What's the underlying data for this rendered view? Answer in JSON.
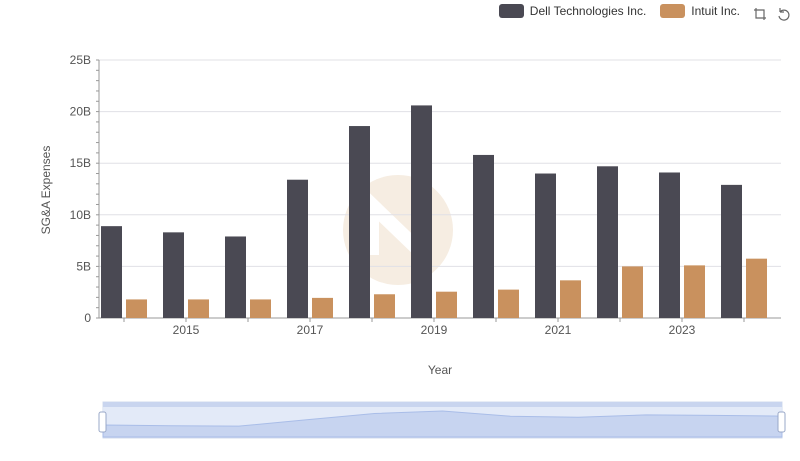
{
  "legend": {
    "items": [
      {
        "label": "Dell Technologies Inc.",
        "color": "#4a4953"
      },
      {
        "label": "Intuit Inc.",
        "color": "#c9915e"
      }
    ]
  },
  "toolbox": {
    "icons": [
      "zoom-icon",
      "restore-icon"
    ]
  },
  "chart_data": {
    "type": "bar",
    "xlabel": "Year",
    "ylabel": "SG&A Expenses",
    "categories": [
      "2014",
      "2015",
      "2016",
      "2017",
      "2018",
      "2019",
      "2020",
      "2021",
      "2022",
      "2023",
      "2024"
    ],
    "x_tick_labels": [
      "2015",
      "2017",
      "2019",
      "2021",
      "2023"
    ],
    "y_ticks": [
      "0",
      "5B",
      "10B",
      "15B",
      "20B",
      "25B"
    ],
    "ylim": [
      0,
      25000000000
    ],
    "series": [
      {
        "name": "Dell Technologies Inc.",
        "color": "#4a4953",
        "values": [
          8900000000,
          8300000000,
          7900000000,
          13400000000,
          18600000000,
          20600000000,
          15800000000,
          14000000000,
          14700000000,
          14100000000,
          12900000000
        ]
      },
      {
        "name": "Intuit Inc.",
        "color": "#c9915e",
        "values": [
          1800000000,
          1800000000,
          1800000000,
          1950000000,
          2300000000,
          2550000000,
          2750000000,
          3650000000,
          5000000000,
          5100000000,
          5750000000
        ]
      }
    ],
    "grid": true,
    "legend_position": "top-right"
  }
}
